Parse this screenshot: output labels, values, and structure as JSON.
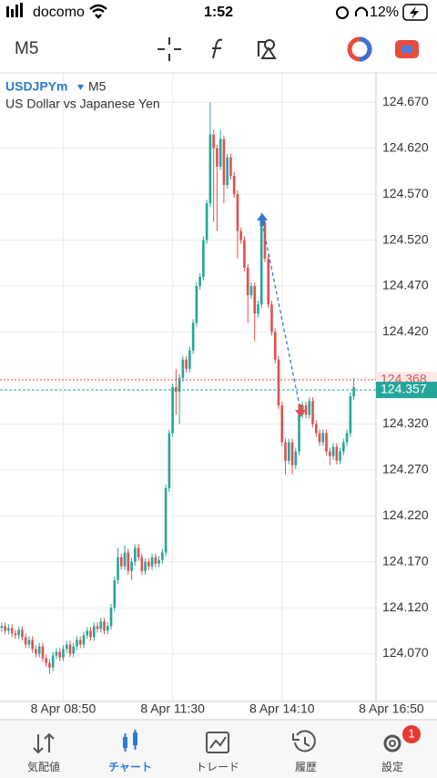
{
  "status_bar": {
    "carrier": "docomo",
    "time": "1:52",
    "battery": "12%"
  },
  "toolbar": {
    "timeframe": "M5"
  },
  "chart_data": {
    "type": "candlestick",
    "symbol": "USDJPYm",
    "timeframe": "M5",
    "title": "US Dollar vs Japanese Yen",
    "open": [
      124.098,
      124.1,
      124.095,
      124.098,
      124.092,
      124.09,
      124.096,
      124.088,
      124.08,
      124.085,
      124.075,
      124.07,
      124.078,
      124.065,
      124.06,
      124.055,
      124.068,
      124.072,
      124.066,
      124.075,
      124.08,
      124.07,
      124.078,
      124.085,
      124.08,
      124.09,
      124.095,
      124.088,
      124.1,
      124.097,
      124.105,
      124.095,
      124.1,
      124.12,
      124.15,
      124.175,
      124.165,
      124.18,
      124.16,
      124.17,
      124.185,
      124.175,
      124.16,
      124.17,
      124.165,
      124.175,
      124.168,
      124.172,
      124.18,
      124.25,
      124.31,
      124.36,
      124.355,
      124.37,
      124.39,
      124.38,
      124.4,
      124.43,
      124.47,
      124.48,
      124.52,
      124.56,
      124.635,
      124.62,
      124.6,
      124.63,
      124.58,
      124.61,
      124.59,
      124.57,
      124.53,
      124.52,
      124.49,
      124.46,
      124.47,
      124.44,
      124.45,
      124.54,
      124.5,
      124.45,
      124.42,
      124.39,
      124.34,
      124.3,
      124.28,
      124.3,
      124.275,
      124.29,
      124.33,
      124.34,
      124.33,
      124.345,
      124.32,
      124.31,
      124.3,
      124.31,
      124.29,
      124.285,
      124.295,
      124.28,
      124.29,
      124.3,
      124.31,
      124.35
    ],
    "high": [
      124.104,
      124.104,
      124.102,
      124.102,
      124.096,
      124.1,
      124.1,
      124.092,
      124.089,
      124.089,
      124.079,
      124.082,
      124.082,
      124.069,
      124.064,
      124.072,
      124.076,
      124.076,
      124.079,
      124.084,
      124.084,
      124.082,
      124.089,
      124.089,
      124.094,
      124.099,
      124.099,
      124.104,
      124.104,
      124.109,
      124.109,
      124.104,
      124.124,
      124.154,
      124.185,
      124.179,
      124.188,
      124.184,
      124.174,
      124.189,
      124.189,
      124.179,
      124.174,
      124.174,
      124.179,
      124.179,
      124.176,
      124.184,
      124.254,
      124.314,
      124.364,
      124.38,
      124.374,
      124.394,
      124.394,
      124.404,
      124.434,
      124.474,
      124.484,
      124.524,
      124.564,
      124.67,
      124.64,
      124.624,
      124.64,
      124.634,
      124.614,
      124.614,
      124.594,
      124.574,
      124.534,
      124.524,
      124.494,
      124.474,
      124.474,
      124.454,
      124.55,
      124.544,
      124.504,
      124.454,
      124.424,
      124.394,
      124.344,
      124.304,
      124.304,
      124.304,
      124.294,
      124.334,
      124.344,
      124.344,
      124.349,
      124.349,
      124.324,
      124.314,
      124.314,
      124.314,
      124.294,
      124.299,
      124.299,
      124.294,
      124.304,
      124.314,
      124.354,
      124.37
    ],
    "low": [
      124.094,
      124.091,
      124.091,
      124.088,
      124.086,
      124.086,
      124.084,
      124.076,
      124.076,
      124.071,
      124.066,
      124.066,
      124.061,
      124.056,
      124.048,
      124.051,
      124.064,
      124.062,
      124.062,
      124.071,
      124.066,
      124.066,
      124.074,
      124.076,
      124.076,
      124.086,
      124.084,
      124.084,
      124.093,
      124.093,
      124.091,
      124.091,
      124.096,
      124.116,
      124.146,
      124.161,
      124.161,
      124.156,
      124.15,
      124.166,
      124.171,
      124.156,
      124.156,
      124.161,
      124.161,
      124.164,
      124.164,
      124.168,
      124.176,
      124.246,
      124.306,
      124.33,
      124.32,
      124.366,
      124.376,
      124.376,
      124.396,
      124.426,
      124.466,
      124.476,
      124.516,
      124.556,
      124.54,
      124.53,
      124.596,
      124.56,
      124.576,
      124.586,
      124.566,
      124.5,
      124.516,
      124.486,
      124.43,
      124.456,
      124.41,
      124.436,
      124.446,
      124.496,
      124.446,
      124.416,
      124.386,
      124.336,
      124.296,
      124.265,
      124.276,
      124.265,
      124.271,
      124.286,
      124.326,
      124.326,
      124.326,
      124.316,
      124.306,
      124.296,
      124.296,
      124.286,
      124.275,
      124.281,
      124.276,
      124.276,
      124.286,
      124.296,
      124.306,
      124.346
    ],
    "close": [
      124.1,
      124.095,
      124.098,
      124.092,
      124.09,
      124.096,
      124.088,
      124.08,
      124.085,
      124.075,
      124.07,
      124.078,
      124.065,
      124.06,
      124.055,
      124.068,
      124.072,
      124.066,
      124.075,
      124.08,
      124.07,
      124.078,
      124.085,
      124.08,
      124.09,
      124.095,
      124.088,
      124.1,
      124.097,
      124.105,
      124.095,
      124.1,
      124.12,
      124.15,
      124.175,
      124.165,
      124.18,
      124.16,
      124.17,
      124.185,
      124.175,
      124.16,
      124.17,
      124.165,
      124.175,
      124.168,
      124.172,
      124.18,
      124.25,
      124.31,
      124.36,
      124.355,
      124.37,
      124.39,
      124.38,
      124.4,
      124.43,
      124.47,
      124.48,
      124.52,
      124.56,
      124.635,
      124.62,
      124.6,
      124.63,
      124.58,
      124.61,
      124.59,
      124.57,
      124.53,
      124.52,
      124.49,
      124.46,
      124.47,
      124.44,
      124.45,
      124.54,
      124.5,
      124.45,
      124.42,
      124.39,
      124.34,
      124.3,
      124.28,
      124.3,
      124.275,
      124.29,
      124.33,
      124.34,
      124.33,
      124.345,
      124.32,
      124.31,
      124.3,
      124.31,
      124.29,
      124.285,
      124.295,
      124.28,
      124.29,
      124.3,
      124.31,
      124.35,
      124.36
    ],
    "up_color": "#26a69a",
    "down_color": "#e0514f",
    "xlim": [
      -0.5,
      109.5
    ],
    "xticks": [
      {
        "value": 18,
        "label": "8 Apr 08:50"
      },
      {
        "value": 50,
        "label": "8 Apr 11:30"
      },
      {
        "value": 82,
        "label": "8 Apr 14:10"
      },
      {
        "value": 114,
        "label": "8 Apr 16:50"
      }
    ],
    "ylim": [
      124.018,
      124.702
    ],
    "yticks": [
      {
        "value": 124.67,
        "label": "124.670"
      },
      {
        "value": 124.62,
        "label": "124.620"
      },
      {
        "value": 124.57,
        "label": "124.570"
      },
      {
        "value": 124.52,
        "label": "124.520"
      },
      {
        "value": 124.47,
        "label": "124.470"
      },
      {
        "value": 124.42,
        "label": "124.420"
      },
      {
        "value": 124.37,
        "label": "124.370"
      },
      {
        "value": 124.32,
        "label": "124.320"
      },
      {
        "value": 124.27,
        "label": "124.270"
      },
      {
        "value": 124.22,
        "label": "124.220"
      },
      {
        "value": 124.17,
        "label": "124.170"
      },
      {
        "value": 124.12,
        "label": "124.120"
      },
      {
        "value": 124.07,
        "label": "124.070"
      }
    ],
    "grid": true,
    "ask": {
      "value": 124.368,
      "label": "124.368",
      "color": "#d9534f"
    },
    "bid": {
      "value": 124.357,
      "label": "124.357",
      "color": "#26a69a"
    }
  },
  "nav": {
    "items": [
      "気配値",
      "チャート",
      "トレード",
      "履歴",
      "設定"
    ],
    "badge": "1"
  }
}
